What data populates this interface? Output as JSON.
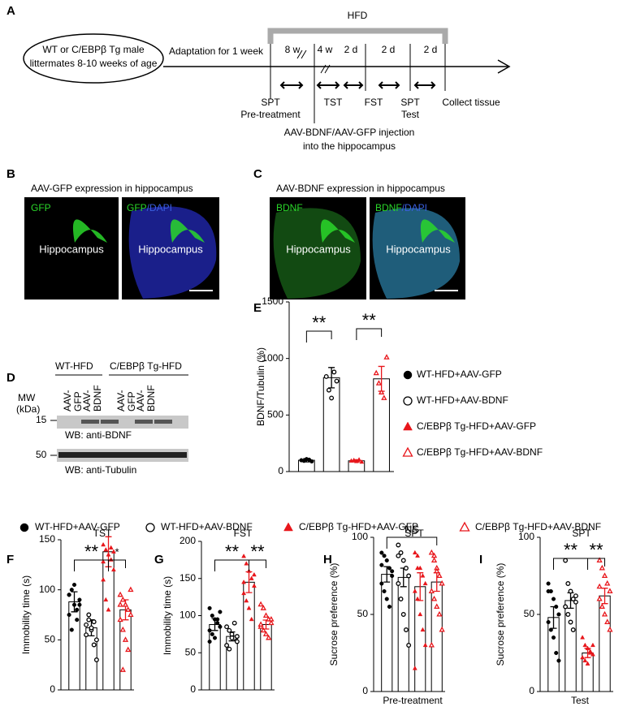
{
  "panels": [
    "A",
    "B",
    "C",
    "D",
    "E",
    "F",
    "G",
    "H",
    "I"
  ],
  "timeline": {
    "hfd": "HFD",
    "start": [
      "WT or C/EBPβ Tg male",
      "littermates 8-10 weeks of age"
    ],
    "adaptation": "Adaptation for 1 week",
    "intervals": [
      "8 w",
      "4 w",
      "2 d",
      "2 d",
      "2 d"
    ],
    "events": [
      [
        "SPT",
        "Pre-treatment"
      ],
      [
        "TST"
      ],
      [
        "FST"
      ],
      [
        "SPT",
        "Test"
      ],
      [
        "Collect tissue"
      ]
    ],
    "injection": [
      "AAV-BDNF/AAV-GFP injection",
      "into the hippocampus"
    ]
  },
  "images": {
    "b_title": "AAV-GFP expression in hippocampus",
    "c_title": "AAV-BDNF expression in hippocampus",
    "b_left": "GFP",
    "b_right": [
      "GFP",
      "/DAPI"
    ],
    "c_left": "BDNF",
    "c_right": [
      "BDNF",
      "/DAPI"
    ],
    "region": "Hippocampus"
  },
  "blot": {
    "groups": [
      "WT-HFD",
      "C/EBPβ Tg-HFD"
    ],
    "lanes": [
      [
        "AAV-",
        "GFP"
      ],
      [
        "AAV-",
        "BDNF"
      ],
      [
        "AAV-",
        "GFP"
      ],
      [
        "AAV-",
        "BDNF"
      ]
    ],
    "mw": [
      "MW",
      "(kDa)"
    ],
    "markers": [
      "15",
      "50"
    ],
    "labels": [
      "WB: anti-BDNF",
      "WB: anti-Tubulin"
    ]
  },
  "legend": {
    "names": [
      "WT-HFD+AAV-GFP",
      "WT-HFD+AAV-BDNF",
      "C/EBPβ Tg-HFD+AAV-GFP",
      "C/EBPβ Tg-HFD+AAV-BDNF"
    ],
    "colors": [
      "#000000",
      "#000000",
      "#e8161b",
      "#e8161b"
    ],
    "markers": [
      "circle",
      "open-circle",
      "triangle",
      "open-triangle"
    ]
  },
  "chart_data": [
    {
      "type": "bar",
      "panel": "E",
      "ylabel": "BDNF/Tubulin (%)",
      "ylim": [
        0,
        1500
      ],
      "yticks": [
        0,
        500,
        1000,
        1500
      ],
      "values": [
        100,
        830,
        95,
        820
      ],
      "errors": [
        15,
        90,
        10,
        110
      ],
      "annotations": [
        "**",
        "**"
      ],
      "points": [
        [
          100,
          95,
          110,
          105,
          90
        ],
        [
          840,
          720,
          650,
          880,
          800
        ],
        [
          95,
          100,
          90,
          105,
          85
        ],
        [
          870,
          780,
          700,
          650,
          1010
        ]
      ]
    },
    {
      "type": "bar",
      "panel": "F",
      "title": "TST",
      "ylabel": "Immobility time (s)",
      "ylim": [
        0,
        150
      ],
      "yticks": [
        0,
        50,
        100,
        150
      ],
      "values": [
        88,
        62,
        138,
        80
      ],
      "errors": [
        10,
        8,
        15,
        10
      ],
      "annotations": [
        "**",
        "*"
      ],
      "points": [
        [
          95,
          100,
          85,
          80,
          90,
          75,
          60,
          105,
          70,
          85,
          95
        ],
        [
          65,
          70,
          60,
          45,
          30,
          55,
          75,
          62,
          68,
          50
        ],
        [
          145,
          140,
          135,
          130,
          120,
          110,
          90,
          80,
          142,
          138,
          128
        ],
        [
          95,
          90,
          85,
          80,
          75,
          70,
          60,
          50,
          40,
          100,
          85,
          20
        ]
      ]
    },
    {
      "type": "bar",
      "panel": "G",
      "title": "FST",
      "ylabel": "Immobility time (s)",
      "ylim": [
        0,
        200
      ],
      "yticks": [
        0,
        50,
        100,
        150,
        200
      ],
      "values": [
        88,
        72,
        145,
        88
      ],
      "errors": [
        8,
        6,
        14,
        6
      ],
      "annotations": [
        "**",
        "**"
      ],
      "points": [
        [
          110,
          100,
          95,
          90,
          85,
          80,
          75,
          70,
          95,
          105,
          65
        ],
        [
          85,
          80,
          75,
          70,
          65,
          60,
          55,
          70,
          90,
          72
        ],
        [
          180,
          170,
          160,
          150,
          140,
          130,
          120,
          110,
          95,
          155,
          145
        ],
        [
          115,
          110,
          100,
          95,
          90,
          85,
          80,
          75,
          70,
          95,
          88
        ]
      ]
    },
    {
      "type": "bar",
      "panel": "H",
      "title": "SPT",
      "ylabel": "Sucrose preference (%)",
      "xlabel": "Pre-treatment",
      "ylim": [
        0,
        100
      ],
      "yticks": [
        0,
        50,
        100
      ],
      "values": [
        76,
        74,
        68,
        71
      ],
      "errors": [
        5,
        6,
        9,
        6
      ],
      "annotations": [
        "NS"
      ],
      "points": [
        [
          90,
          88,
          85,
          80,
          75,
          70,
          65,
          60,
          55,
          78,
          82
        ],
        [
          95,
          90,
          85,
          80,
          75,
          70,
          60,
          50,
          40,
          30,
          88
        ],
        [
          90,
          88,
          80,
          75,
          70,
          65,
          60,
          50,
          40,
          30,
          15,
          80
        ],
        [
          90,
          85,
          80,
          75,
          70,
          65,
          60,
          55,
          50,
          40,
          30,
          88,
          78
        ]
      ]
    },
    {
      "type": "bar",
      "panel": "I",
      "title": "SPT",
      "ylabel": "Sucrose preference (%)",
      "xlabel": "Test",
      "ylim": [
        0,
        100
      ],
      "yticks": [
        0,
        50,
        100
      ],
      "values": [
        48,
        59,
        25,
        62
      ],
      "errors": [
        7,
        5,
        3,
        5
      ],
      "annotations": [
        "**",
        "**"
      ],
      "points": [
        [
          70,
          65,
          60,
          55,
          50,
          45,
          40,
          35,
          25,
          20,
          65
        ],
        [
          85,
          70,
          65,
          60,
          58,
          55,
          50,
          45,
          40,
          62
        ],
        [
          35,
          30,
          28,
          25,
          24,
          22,
          20,
          18,
          26,
          30
        ],
        [
          85,
          80,
          75,
          70,
          65,
          60,
          55,
          50,
          45,
          40,
          68
        ]
      ]
    }
  ]
}
